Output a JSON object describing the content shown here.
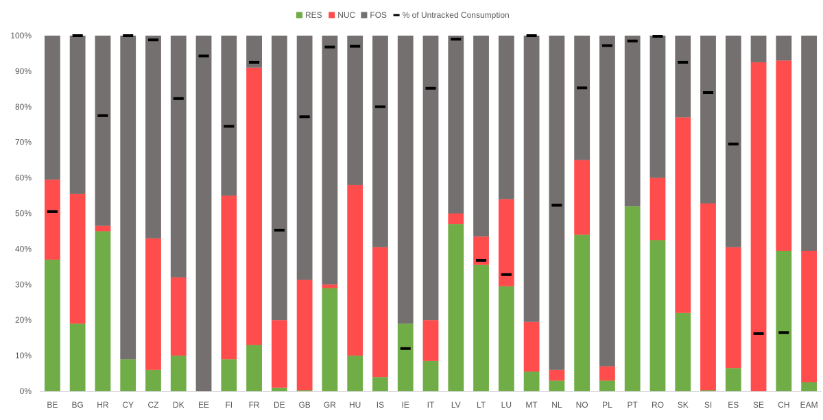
{
  "chart_data": {
    "type": "bar",
    "stacked": true,
    "title": "",
    "xlabel": "",
    "ylabel": "",
    "ylim": [
      0,
      100
    ],
    "y_ticks": [
      "0%",
      "10%",
      "20%",
      "30%",
      "40%",
      "50%",
      "60%",
      "70%",
      "80%",
      "90%",
      "100%"
    ],
    "grid": false,
    "legend_position": "top-center",
    "categories": [
      "BE",
      "BG",
      "HR",
      "CY",
      "CZ",
      "DK",
      "EE",
      "FI",
      "FR",
      "DE",
      "GB",
      "GR",
      "HU",
      "IS",
      "IE",
      "IT",
      "LV",
      "LT",
      "LU",
      "MT",
      "NL",
      "NO",
      "PL",
      "PT",
      "RO",
      "SK",
      "SI",
      "ES",
      "SE",
      "CH",
      "EAM"
    ],
    "series": [
      {
        "name": "RES",
        "color": "#70ad47",
        "values": [
          37,
          19,
          45,
          9,
          6,
          10,
          0,
          9,
          13,
          1,
          0.3,
          29,
          10,
          4,
          19,
          8.5,
          47,
          35.5,
          29.5,
          5.5,
          3,
          44,
          3,
          52,
          42.5,
          22,
          0.3,
          6.5,
          0,
          39.5,
          2.5
        ]
      },
      {
        "name": "NUC",
        "color": "#ff4d4d",
        "values": [
          22.5,
          36.5,
          1.5,
          0,
          37,
          22,
          0,
          46,
          78,
          19,
          31,
          1,
          48,
          36.5,
          0,
          11.5,
          3,
          8,
          24.5,
          14,
          3,
          21,
          4,
          0,
          17.5,
          55,
          52.5,
          34,
          92.5,
          53.5,
          37
        ]
      },
      {
        "name": "FOS",
        "color": "#757070",
        "values": [
          40.5,
          44.5,
          53.5,
          91,
          57,
          68,
          100,
          45,
          9,
          80,
          68.7,
          70,
          42,
          59.5,
          81,
          80,
          50,
          56.5,
          46,
          80.5,
          94,
          35,
          93,
          48,
          40,
          23,
          47.2,
          59.5,
          7.5,
          7,
          60.5
        ]
      },
      {
        "name": "% of Untracked Consumption",
        "color": "#000000",
        "kind": "marker",
        "values": [
          50.5,
          100,
          77.5,
          100,
          98.8,
          82.3,
          94.3,
          74.5,
          92.5,
          45.3,
          77.2,
          96.8,
          97,
          80,
          12,
          85.2,
          99,
          36.8,
          32.8,
          100,
          52.3,
          85.3,
          97.2,
          98.5,
          99.8,
          92.5,
          84,
          69.5,
          16.2,
          16.5,
          null
        ]
      }
    ]
  }
}
